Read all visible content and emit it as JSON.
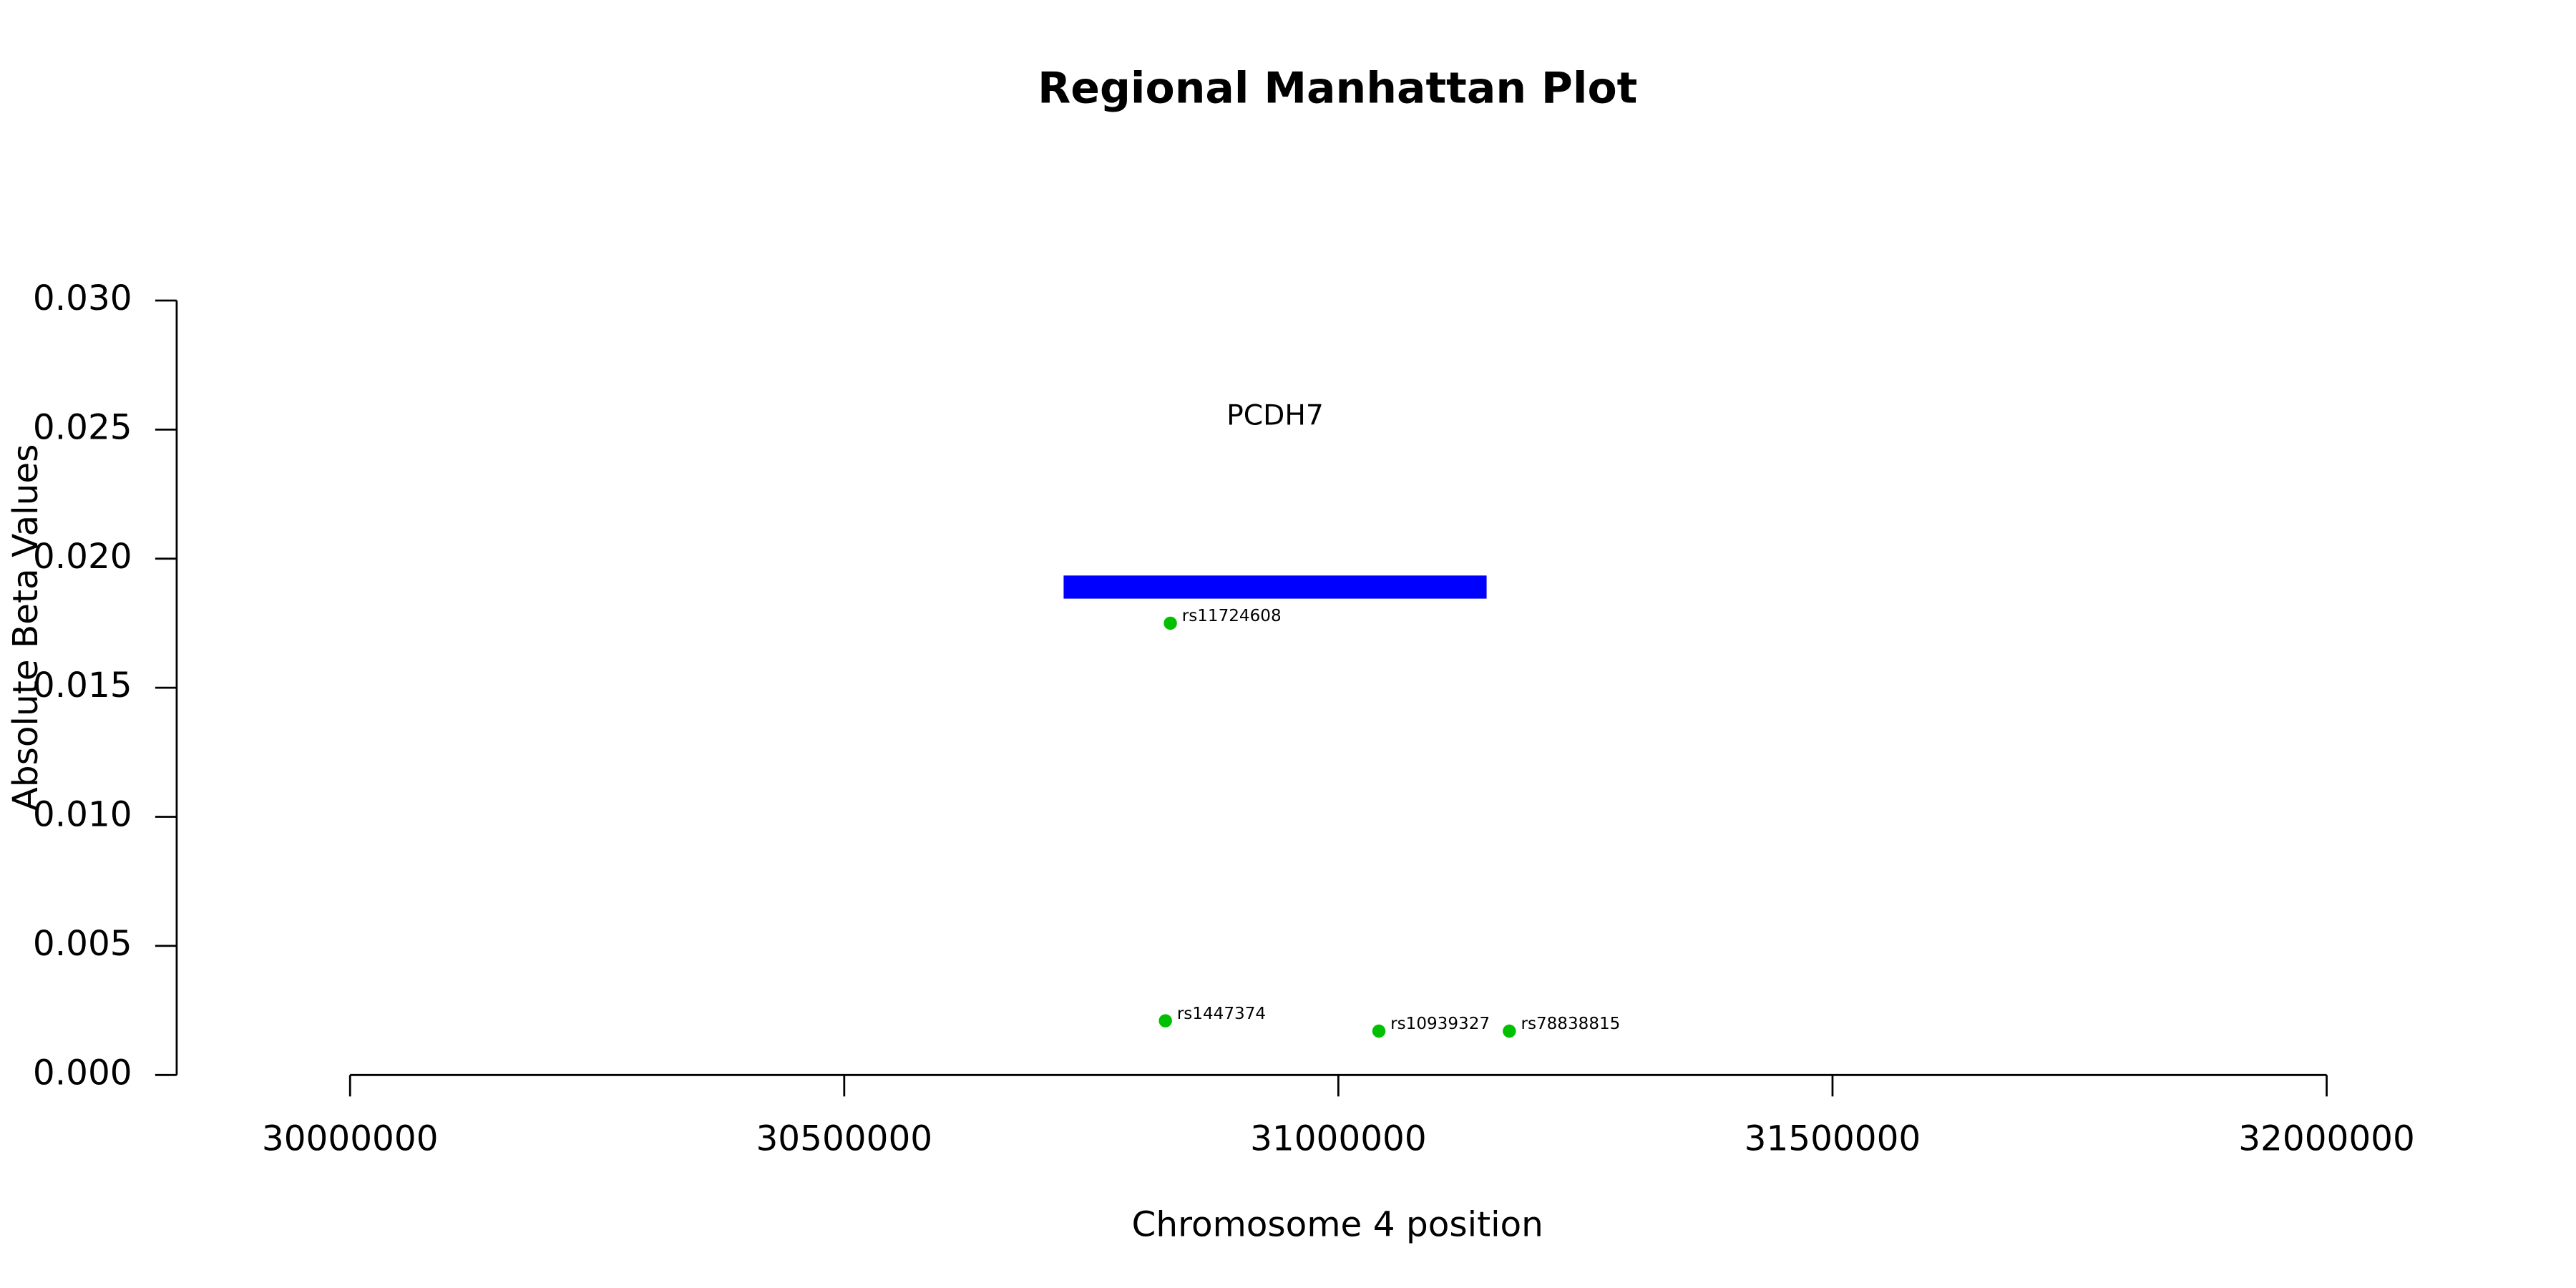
{
  "chart_data": {
    "type": "scatter",
    "title": "Regional Manhattan Plot",
    "xlabel": "Chromosome 4 position",
    "ylabel": "Absolute Beta Values",
    "xlim": [
      30000000,
      32000000
    ],
    "xticks": [
      30000000,
      30500000,
      31000000,
      31500000,
      32000000
    ],
    "ylim": [
      0,
      0.03
    ],
    "yticks": [
      {
        "value": 0,
        "label": "0.000"
      },
      {
        "value": 0.005,
        "label": "0.005"
      },
      {
        "value": 0.01,
        "label": "0.010"
      },
      {
        "value": 0.015,
        "label": "0.015"
      },
      {
        "value": 0.02,
        "label": "0.020"
      },
      {
        "value": 0.025,
        "label": "0.025"
      },
      {
        "value": 0.03,
        "label": "0.030"
      }
    ],
    "series": [
      {
        "color": "#00c000",
        "x": [
          30830000,
          30825000,
          31041000,
          31173000
        ],
        "values": [
          0.0175,
          0.0021,
          0.0017,
          0.0017
        ],
        "labels": [
          "rs11724608",
          "rs1447374",
          "rs10939327",
          "rs78838815"
        ]
      }
    ],
    "genes": [
      {
        "name": "PCDH7",
        "start": 30722000,
        "end": 31150000,
        "y": 0.0189,
        "color": "#0000ff"
      }
    ]
  }
}
